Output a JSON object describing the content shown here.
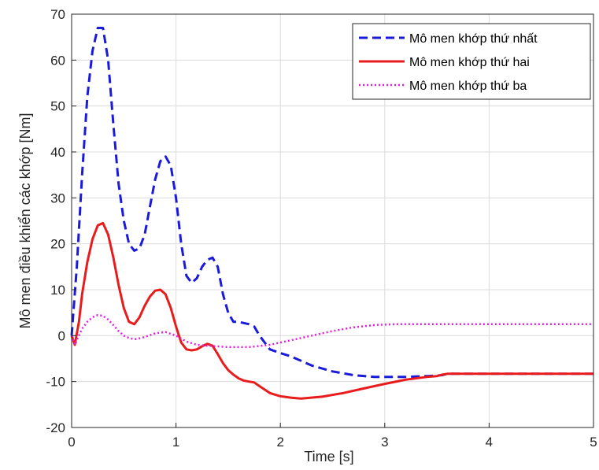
{
  "chart_data": {
    "type": "line",
    "title": "",
    "xlabel": "Time [s]",
    "ylabel": "Mô men điều khiển các khớp [Nm]",
    "xlim": [
      0,
      5
    ],
    "ylim": [
      -20,
      70
    ],
    "xticks": [
      0,
      1,
      2,
      3,
      4,
      5
    ],
    "yticks": [
      -20,
      -10,
      0,
      10,
      20,
      30,
      40,
      50,
      60,
      70
    ],
    "grid": true,
    "legend_position": "top-right",
    "series": [
      {
        "name": "Mô men khớp thứ nhất",
        "color": "#1a1adb",
        "style": "dashed",
        "x": [
          0,
          0.05,
          0.1,
          0.15,
          0.2,
          0.25,
          0.3,
          0.35,
          0.4,
          0.45,
          0.5,
          0.55,
          0.6,
          0.65,
          0.7,
          0.75,
          0.8,
          0.85,
          0.9,
          0.95,
          1.0,
          1.05,
          1.1,
          1.15,
          1.2,
          1.25,
          1.3,
          1.35,
          1.4,
          1.45,
          1.5,
          1.55,
          1.6,
          1.7,
          1.75,
          1.8,
          1.85,
          1.9,
          2.0,
          2.1,
          2.2,
          2.3,
          2.5,
          2.7,
          2.9,
          3.0,
          3.2,
          3.4,
          3.5,
          3.55,
          3.6,
          4.0,
          4.5,
          5.0
        ],
        "values": [
          0,
          15,
          35,
          52,
          62,
          67,
          67,
          60,
          46,
          33,
          25,
          20,
          18.5,
          19,
          22,
          28,
          34,
          38,
          39,
          37,
          30,
          20,
          13,
          11.5,
          12.5,
          15,
          16.5,
          17,
          15,
          9,
          5,
          3,
          3,
          2.5,
          2,
          0,
          -1.5,
          -3,
          -3.8,
          -4.5,
          -5.5,
          -6.5,
          -7.8,
          -8.6,
          -9,
          -9,
          -9,
          -8.8,
          -8.7,
          -8.6,
          -8.3,
          -8.3,
          -8.3,
          -8.3
        ]
      },
      {
        "name": "Mô men khớp thứ hai",
        "color": "#e81c1c",
        "style": "solid",
        "x": [
          0,
          0.03,
          0.07,
          0.1,
          0.15,
          0.2,
          0.25,
          0.3,
          0.35,
          0.4,
          0.45,
          0.5,
          0.55,
          0.6,
          0.65,
          0.7,
          0.75,
          0.8,
          0.85,
          0.9,
          0.95,
          1.0,
          1.05,
          1.1,
          1.15,
          1.2,
          1.25,
          1.3,
          1.35,
          1.4,
          1.45,
          1.5,
          1.55,
          1.6,
          1.65,
          1.7,
          1.75,
          1.8,
          1.9,
          2.0,
          2.1,
          2.2,
          2.4,
          2.6,
          2.8,
          3.0,
          3.2,
          3.4,
          3.5,
          3.55,
          3.6,
          4.0,
          4.5,
          5.0
        ],
        "values": [
          0,
          -2,
          3,
          9,
          16,
          21,
          24,
          24.5,
          22,
          17,
          11,
          6,
          3,
          2.5,
          4,
          6.5,
          8.5,
          9.8,
          10,
          9,
          6,
          2,
          -1.5,
          -3,
          -3.2,
          -3,
          -2.3,
          -1.8,
          -2.2,
          -4,
          -6,
          -7.5,
          -8.5,
          -9.3,
          -9.8,
          -10,
          -10.2,
          -11,
          -12.5,
          -13.2,
          -13.5,
          -13.7,
          -13.3,
          -12.5,
          -11.5,
          -10.5,
          -9.6,
          -9,
          -8.8,
          -8.5,
          -8.3,
          -8.3,
          -8.3,
          -8.3
        ]
      },
      {
        "name": "Mô men khớp thứ ba",
        "color": "#e31ee3",
        "style": "dotted",
        "x": [
          0,
          0.03,
          0.07,
          0.1,
          0.15,
          0.2,
          0.25,
          0.3,
          0.35,
          0.4,
          0.45,
          0.5,
          0.55,
          0.6,
          0.65,
          0.7,
          0.8,
          0.9,
          1.0,
          1.1,
          1.2,
          1.3,
          1.5,
          1.7,
          1.9,
          2.1,
          2.3,
          2.5,
          2.7,
          2.9,
          3.1,
          3.3,
          3.5,
          4.0,
          4.5,
          5.0
        ],
        "values": [
          0,
          -2,
          0,
          1.5,
          3,
          4,
          4.5,
          4.3,
          3.5,
          2.3,
          1,
          0,
          -0.5,
          -0.8,
          -0.6,
          -0.3,
          0.5,
          0.8,
          0,
          -1.3,
          -2,
          -2.2,
          -2.5,
          -2.5,
          -2,
          -1,
          0,
          1,
          1.8,
          2.3,
          2.5,
          2.5,
          2.5,
          2.5,
          2.5,
          2.5
        ]
      }
    ]
  }
}
